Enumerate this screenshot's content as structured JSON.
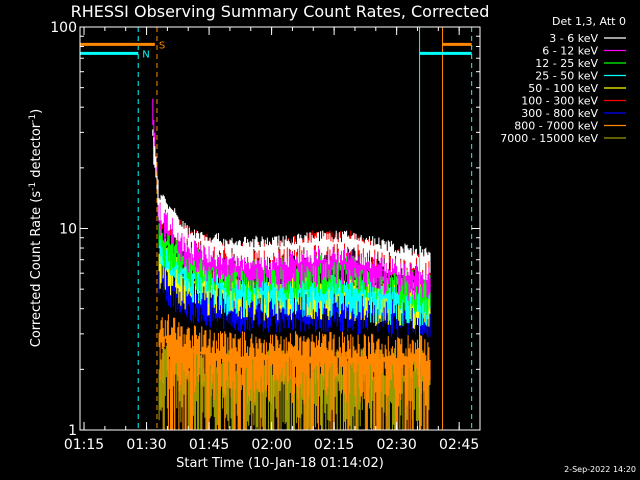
{
  "chart_data": {
    "type": "line",
    "title": "RHESSI Observing Summary Count Rates, Corrected",
    "xlabel": "Start Time (10-Jan-18 01:14:02)",
    "ylabel": "Corrected Count Rate (s",
    "ylabel_sup": "-1",
    "ylabel_mid": " detector",
    "ylabel_tail": ")",
    "y_scale": "log",
    "ylim": [
      1,
      100
    ],
    "xlim": [
      "01:14:02",
      "02:50:00"
    ],
    "x_ticks": [
      "01:15",
      "01:30",
      "01:45",
      "02:00",
      "02:15",
      "02:30",
      "02:45"
    ],
    "y_ticks": [
      "1",
      "10",
      "100"
    ],
    "legend_header": "Det 1,3, Att 0",
    "legend_position": "top-right",
    "markers": [
      {
        "type": "dashed",
        "time": "01:28:00",
        "color": "#00ffff"
      },
      {
        "type": "dashed",
        "time": "01:32:30",
        "color": "#ff8800"
      },
      {
        "type": "solid",
        "time": "02:35:30",
        "color": "#00ffff"
      },
      {
        "type": "solid",
        "time": "02:41:00",
        "color": "#ff8800"
      },
      {
        "type": "dashed",
        "time": "02:48:00",
        "color": "#00ffff"
      }
    ],
    "flags": [
      {
        "label": "S",
        "color": "#ff8800",
        "intervals": [
          [
            "01:14:02",
            "01:32:00"
          ],
          [
            "02:41:00",
            "02:48:00"
          ]
        ],
        "level": 82
      },
      {
        "label": "N",
        "color": "#00ffff",
        "intervals": [
          [
            "01:14:02",
            "01:28:00"
          ],
          [
            "02:35:30",
            "02:48:00"
          ]
        ],
        "level": 74
      }
    ],
    "series": [
      {
        "name": "3 - 6 keV",
        "color": "#ffffff",
        "values_at": [
          [
            "01:31:30",
            30
          ],
          [
            "01:33:00",
            14
          ],
          [
            "01:40:00",
            9
          ],
          [
            "01:50:00",
            8
          ],
          [
            "02:00:00",
            8
          ],
          [
            "02:10:00",
            8.5
          ],
          [
            "02:20:00",
            8.5
          ],
          [
            "02:30:00",
            7.5
          ],
          [
            "02:38:00",
            7
          ]
        ]
      },
      {
        "name": "6 - 12 keV",
        "color": "#ff00ff",
        "values_at": [
          [
            "01:31:30",
            40
          ],
          [
            "01:33:00",
            12
          ],
          [
            "01:40:00",
            8
          ],
          [
            "01:50:00",
            6.5
          ],
          [
            "02:00:00",
            6.5
          ],
          [
            "02:15:00",
            7
          ],
          [
            "02:30:00",
            6
          ],
          [
            "02:38:00",
            5.5
          ]
        ]
      },
      {
        "name": "12 - 25 keV",
        "color": "#00ff00",
        "values_at": [
          [
            "01:33:00",
            9
          ],
          [
            "01:40:00",
            7
          ],
          [
            "01:50:00",
            6
          ],
          [
            "02:00:00",
            6
          ],
          [
            "02:15:00",
            6.5
          ],
          [
            "02:30:00",
            5.5
          ],
          [
            "02:38:00",
            5
          ]
        ]
      },
      {
        "name": "25 - 50 keV",
        "color": "#00ffff",
        "values_at": [
          [
            "01:33:00",
            8
          ],
          [
            "01:40:00",
            6
          ],
          [
            "01:50:00",
            5
          ],
          [
            "02:00:00",
            5
          ],
          [
            "02:15:00",
            5
          ],
          [
            "02:30:00",
            4.5
          ],
          [
            "02:38:00",
            4.5
          ]
        ]
      },
      {
        "name": "50 - 100 keV",
        "color": "#ffff00",
        "values_at": [
          [
            "01:33:00",
            7
          ],
          [
            "01:40:00",
            5.5
          ],
          [
            "01:50:00",
            5
          ],
          [
            "02:00:00",
            5
          ],
          [
            "02:15:00",
            5
          ],
          [
            "02:30:00",
            4.5
          ],
          [
            "02:38:00",
            4.5
          ]
        ]
      },
      {
        "name": "100 - 300 keV",
        "color": "#ff0000",
        "values_at": [
          [
            "01:33:00",
            13
          ],
          [
            "01:36:00",
            11
          ],
          [
            "01:40:00",
            9
          ],
          [
            "01:50:00",
            7.5
          ],
          [
            "02:00:00",
            7.5
          ],
          [
            "02:10:00",
            8.5
          ],
          [
            "02:20:00",
            8.5
          ],
          [
            "02:30:00",
            7
          ],
          [
            "02:38:00",
            6.5
          ]
        ]
      },
      {
        "name": "300 - 800 keV",
        "color": "#0000ff",
        "values_at": [
          [
            "01:33:00",
            6
          ],
          [
            "01:40:00",
            4.5
          ],
          [
            "01:50:00",
            4
          ],
          [
            "02:00:00",
            4
          ],
          [
            "02:15:00",
            4
          ],
          [
            "02:30:00",
            3.8
          ],
          [
            "02:38:00",
            3.8
          ]
        ]
      },
      {
        "name": "800 - 7000 keV",
        "color": "#ff8800",
        "values_at": [
          [
            "01:33:00",
            3
          ],
          [
            "01:40:00",
            2.5
          ],
          [
            "01:50:00",
            2.3
          ],
          [
            "02:00:00",
            2.3
          ],
          [
            "02:15:00",
            2.3
          ],
          [
            "02:30:00",
            2.2
          ],
          [
            "02:38:00",
            2.2
          ]
        ]
      },
      {
        "name": "7000 - 15000 keV",
        "color": "#999900",
        "values_at": [
          [
            "01:33:00",
            2
          ],
          [
            "01:50:00",
            1.8
          ],
          [
            "02:15:00",
            1.8
          ],
          [
            "02:38:00",
            1.8
          ]
        ]
      }
    ],
    "footer_stamp": "2-Sep-2022 14:20"
  }
}
